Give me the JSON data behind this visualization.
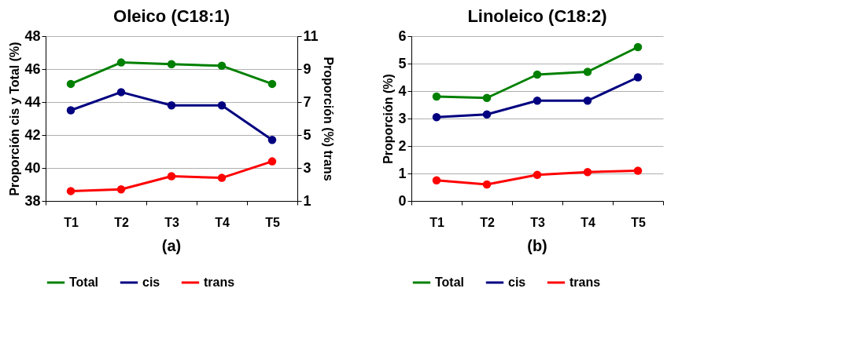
{
  "chart_data": [
    {
      "type": "line",
      "title": "Oleico (C18:1)",
      "categories": [
        "T1",
        "T2",
        "T3",
        "T4",
        "T5"
      ],
      "ylabel": "Proporción cis y Total (%)",
      "y2label": "Proporción (%) trans",
      "ylim": [
        38,
        48
      ],
      "yticks": [
        38,
        40,
        42,
        44,
        46,
        48
      ],
      "y2lim": [
        1,
        11
      ],
      "y2ticks": [
        1,
        3,
        5,
        7,
        9,
        11
      ],
      "grid": "y",
      "legend": "bottom",
      "marker": "circle",
      "annotations": [
        "(a)"
      ],
      "series": [
        {
          "name": "Total",
          "color": "#008000",
          "values": [
            45.1,
            46.4,
            46.3,
            46.2,
            45.1
          ]
        },
        {
          "name": "cis",
          "color": "#000080",
          "values": [
            43.5,
            44.6,
            43.8,
            43.8,
            41.7
          ]
        },
        {
          "name": "trans",
          "color": "#ff0000",
          "axis": "y2",
          "values": [
            1.6,
            1.7,
            2.5,
            2.4,
            3.4
          ]
        }
      ]
    },
    {
      "type": "line",
      "title": "Linoleico (C18:2)",
      "categories": [
        "T1",
        "T2",
        "T3",
        "T4",
        "T5"
      ],
      "ylabel": "Proporción (%)",
      "ylim": [
        0,
        6
      ],
      "yticks": [
        0,
        1,
        2,
        3,
        4,
        5,
        6
      ],
      "grid": "y",
      "legend": "bottom",
      "marker": "circle",
      "annotations": [
        "(b)"
      ],
      "series": [
        {
          "name": "Total",
          "color": "#008000",
          "values": [
            3.8,
            3.75,
            4.6,
            4.7,
            5.6
          ]
        },
        {
          "name": "cis",
          "color": "#000080",
          "values": [
            3.05,
            3.15,
            3.65,
            3.65,
            4.5
          ]
        },
        {
          "name": "trans",
          "color": "#ff0000",
          "values": [
            0.75,
            0.6,
            0.95,
            1.05,
            1.1
          ]
        }
      ]
    }
  ]
}
